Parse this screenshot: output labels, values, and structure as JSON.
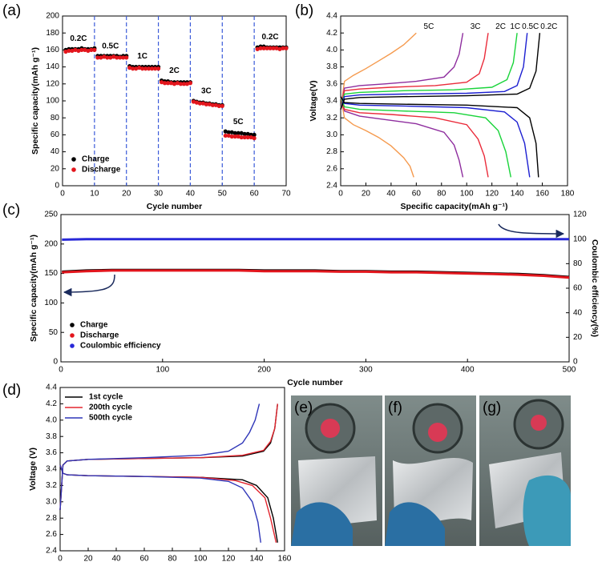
{
  "chart_data": [
    {
      "type": "scatter",
      "panel": "(a)",
      "xlabel": "Cycle number",
      "ylabel": "Specific capacity(mAh g⁻¹)",
      "xlim": [
        0,
        70
      ],
      "xticks": [
        0,
        10,
        20,
        30,
        40,
        50,
        60,
        70
      ],
      "ylim": [
        0,
        200
      ],
      "yticks": [
        0,
        20,
        40,
        60,
        80,
        100,
        120,
        140,
        160,
        180,
        200
      ],
      "legend": "lower left",
      "dividers": [
        10,
        20,
        30,
        40,
        50,
        60
      ],
      "divider_color": "#3b5bd9",
      "annotations": [
        "0.2C",
        "0.5C",
        "1C",
        "2C",
        "3C",
        "5C",
        "0.2C"
      ],
      "x": [
        1,
        2,
        3,
        4,
        5,
        6,
        7,
        8,
        9,
        10,
        11,
        12,
        13,
        14,
        15,
        16,
        17,
        18,
        19,
        20,
        21,
        22,
        23,
        24,
        25,
        26,
        27,
        28,
        29,
        30,
        31,
        32,
        33,
        34,
        35,
        36,
        37,
        38,
        39,
        40,
        41,
        42,
        43,
        44,
        45,
        46,
        47,
        48,
        49,
        50,
        51,
        52,
        53,
        54,
        55,
        56,
        57,
        58,
        59,
        60,
        61,
        62,
        63,
        64,
        65,
        66,
        67,
        68,
        69,
        70
      ],
      "series": [
        {
          "name": "Charge",
          "color": "#000000",
          "values": [
            160,
            161,
            161,
            161,
            161,
            162,
            161,
            161,
            161,
            162,
            153,
            153,
            153,
            153,
            153,
            153,
            153,
            152,
            153,
            153,
            141,
            140,
            140,
            140,
            140,
            140,
            140,
            140,
            140,
            140,
            124,
            123,
            123,
            122,
            122,
            122,
            122,
            122,
            122,
            122,
            100,
            99,
            98,
            98,
            97,
            97,
            96,
            96,
            95,
            95,
            64,
            63,
            63,
            62,
            62,
            62,
            61,
            61,
            60,
            60,
            163,
            164,
            164,
            163,
            163,
            163,
            163,
            163,
            163,
            163
          ]
        },
        {
          "name": "Discharge",
          "color": "#e3161d",
          "values": [
            158,
            159,
            159,
            160,
            159,
            160,
            160,
            159,
            160,
            160,
            151,
            151,
            152,
            151,
            151,
            152,
            151,
            151,
            151,
            151,
            139,
            138,
            138,
            139,
            138,
            138,
            138,
            138,
            138,
            138,
            122,
            121,
            121,
            121,
            120,
            121,
            120,
            120,
            120,
            121,
            99,
            98,
            97,
            97,
            96,
            96,
            95,
            95,
            94,
            94,
            59,
            59,
            58,
            58,
            58,
            57,
            57,
            57,
            57,
            56,
            161,
            162,
            162,
            162,
            162,
            162,
            162,
            161,
            162,
            162
          ]
        }
      ]
    },
    {
      "type": "line",
      "panel": "(b)",
      "xlabel": "Specific capacity(mAh g⁻¹)",
      "ylabel": "Voltage(V)",
      "xlim": [
        0,
        180
      ],
      "xticks": [
        0,
        20,
        40,
        60,
        80,
        100,
        120,
        140,
        160,
        180
      ],
      "ylim": [
        2.4,
        4.4
      ],
      "yticks": [
        2.4,
        2.6,
        2.8,
        {
          "value": 3,
          "label": "3.0"
        },
        3.2,
        3.4,
        3.6,
        3.8,
        {
          "value": 4,
          "label": "4.0"
        },
        4.2,
        4.4
      ],
      "curves": [
        {
          "name": "5C",
          "color": "#f59a4e",
          "charge": {
            "x": [
              0,
              3,
              10,
              20,
              30,
              40,
              50,
              55,
              60
            ],
            "y": [
              3.3,
              3.63,
              3.7,
              3.78,
              3.87,
              3.96,
              4.06,
              4.13,
              4.2
            ]
          },
          "discharge": {
            "x": [
              0,
              3,
              10,
              20,
              30,
              40,
              50,
              55,
              58
            ],
            "y": [
              3.45,
              3.2,
              3.12,
              3.05,
              2.97,
              2.87,
              2.73,
              2.63,
              2.5
            ]
          }
        },
        {
          "name": "3C",
          "color": "#8e2d9e",
          "charge": {
            "x": [
              0,
              3,
              15,
              35,
              60,
              82,
              90,
              94,
              97
            ],
            "y": [
              3.3,
              3.55,
              3.58,
              3.6,
              3.63,
              3.68,
              3.8,
              3.95,
              4.2
            ]
          },
          "discharge": {
            "x": [
              0,
              3,
              15,
              35,
              60,
              82,
              90,
              94,
              97
            ],
            "y": [
              3.45,
              3.28,
              3.22,
              3.18,
              3.13,
              3.03,
              2.88,
              2.7,
              2.5
            ]
          }
        },
        {
          "name": "2C",
          "color": "#ea2b3a",
          "charge": {
            "x": [
              0,
              3,
              15,
              40,
              75,
              100,
              110,
              114,
              117
            ],
            "y": [
              3.3,
              3.52,
              3.54,
              3.56,
              3.58,
              3.62,
              3.72,
              3.9,
              4.2
            ]
          },
          "discharge": {
            "x": [
              0,
              3,
              15,
              40,
              75,
              100,
              109,
              114,
              117
            ],
            "y": [
              3.45,
              3.3,
              3.26,
              3.24,
              3.2,
              3.12,
              2.95,
              2.75,
              2.5
            ]
          }
        },
        {
          "name": "1C",
          "color": "#19d43a",
          "charge": {
            "x": [
              0,
              3,
              15,
              50,
              90,
              120,
              132,
              137,
              140
            ],
            "y": [
              3.3,
              3.48,
              3.5,
              3.52,
              3.53,
              3.56,
              3.65,
              3.85,
              4.2
            ]
          },
          "discharge": {
            "x": [
              0,
              3,
              15,
              50,
              90,
              115,
              125,
              131,
              135
            ],
            "y": [
              3.45,
              3.33,
              3.3,
              3.28,
              3.26,
              3.2,
              3.05,
              2.8,
              2.5
            ]
          }
        },
        {
          "name": "0.5C",
          "color": "#1c1fd1",
          "charge": {
            "x": [
              0,
              3,
              15,
              50,
              100,
              130,
              140,
              145,
              148
            ],
            "y": [
              3.3,
              3.45,
              3.47,
              3.48,
              3.49,
              3.51,
              3.58,
              3.8,
              4.2
            ]
          },
          "discharge": {
            "x": [
              0,
              3,
              15,
              50,
              100,
              130,
              140,
              146,
              150
            ],
            "y": [
              3.45,
              3.37,
              3.35,
              3.34,
              3.32,
              3.27,
              3.15,
              2.9,
              2.5
            ]
          }
        },
        {
          "name": "0.2C",
          "color": "#000000",
          "charge": {
            "x": [
              0,
              3,
              15,
              50,
              100,
              140,
              150,
              155,
              158
            ],
            "y": [
              3.3,
              3.42,
              3.44,
              3.45,
              3.46,
              3.48,
              3.55,
              3.75,
              4.2
            ]
          },
          "discharge": {
            "x": [
              0,
              3,
              15,
              50,
              100,
              140,
              150,
              155,
              157
            ],
            "y": [
              3.45,
              3.38,
              3.37,
              3.36,
              3.35,
              3.32,
              3.2,
              2.9,
              2.5
            ]
          }
        }
      ]
    },
    {
      "type": "line",
      "panel": "(c)",
      "xlabel": "Cycle number",
      "ylabel": "Specific capacity(mAh g⁻¹)",
      "y2label": "Coulombic efficiency(%)",
      "xlim": [
        0,
        500
      ],
      "xticks": [
        0,
        100,
        200,
        300,
        400,
        500
      ],
      "ylim": [
        0,
        250
      ],
      "yticks": [
        0,
        50,
        100,
        150,
        200,
        250
      ],
      "y2lim": [
        0,
        120
      ],
      "y2ticks": [
        0,
        20,
        40,
        60,
        80,
        100,
        120
      ],
      "legend": "lower left",
      "x": [
        1,
        25,
        50,
        75,
        100,
        125,
        150,
        175,
        200,
        225,
        250,
        275,
        300,
        325,
        350,
        375,
        400,
        425,
        450,
        475,
        500
      ],
      "series": [
        {
          "name": "Charge",
          "color": "#000000",
          "values": [
            153,
            155,
            156,
            156,
            156,
            156,
            156,
            156,
            155,
            155,
            155,
            154,
            154,
            153,
            153,
            152,
            151,
            150,
            149,
            147,
            144
          ]
        },
        {
          "name": "Discharge",
          "color": "#e3161d",
          "values": [
            152,
            154,
            155,
            155,
            155,
            155,
            155,
            155,
            154,
            154,
            154,
            153,
            153,
            152,
            152,
            151,
            150,
            149,
            148,
            146,
            143
          ]
        },
        {
          "name": "Coulombic efficiency",
          "color": "#2828d8",
          "axis": "y2",
          "values": [
            99.5,
            100,
            100,
            100,
            100,
            100,
            100,
            100,
            100,
            100,
            100,
            100,
            100,
            100,
            100,
            100,
            100,
            100,
            100,
            100,
            100
          ]
        }
      ]
    },
    {
      "type": "line",
      "panel": "(d)",
      "ylabel": "Voltage (V)",
      "xlim": [
        0,
        160
      ],
      "xticks": [
        0,
        20,
        40,
        60,
        80,
        100,
        120,
        140,
        160
      ],
      "ylim": [
        2.4,
        4.4
      ],
      "yticks": [
        2.4,
        2.6,
        2.8,
        {
          "value": 3,
          "label": "3.0"
        },
        3.2,
        3.4,
        3.6,
        3.8,
        {
          "value": 4,
          "label": "4.0"
        },
        4.2,
        4.4
      ],
      "legend": "upper left",
      "curves": [
        {
          "name": "1st cycle",
          "color": "#000000",
          "charge": {
            "x": [
              0,
              2,
              5,
              20,
              60,
              100,
              130,
              145,
              150,
              153,
              155
            ],
            "y": [
              2.9,
              3.45,
              3.5,
              3.52,
              3.53,
              3.54,
              3.56,
              3.62,
              3.72,
              3.9,
              4.2
            ]
          },
          "discharge": {
            "x": [
              0,
              2,
              5,
              20,
              60,
              100,
              130,
              140,
              148,
              152,
              155
            ],
            "y": [
              3.45,
              3.35,
              3.33,
              3.32,
              3.31,
              3.3,
              3.27,
              3.2,
              3.05,
              2.8,
              2.5
            ]
          }
        },
        {
          "name": "200th cycle",
          "color": "#e3262f",
          "charge": {
            "x": [
              0,
              2,
              5,
              20,
              60,
              100,
              130,
              145,
              150,
              153,
              155
            ],
            "y": [
              2.9,
              3.45,
              3.5,
              3.52,
              3.53,
              3.54,
              3.57,
              3.63,
              3.74,
              3.9,
              4.2
            ]
          },
          "discharge": {
            "x": [
              0,
              2,
              5,
              20,
              60,
              100,
              125,
              137,
              146,
              150,
              154
            ],
            "y": [
              3.45,
              3.35,
              3.33,
              3.32,
              3.31,
              3.3,
              3.26,
              3.2,
              3.05,
              2.8,
              2.5
            ]
          }
        },
        {
          "name": "500th cycle",
          "color": "#2f36b8",
          "charge": {
            "x": [
              0,
              2,
              5,
              20,
              60,
              100,
              120,
              130,
              135,
              139,
              142
            ],
            "y": [
              2.9,
              3.45,
              3.5,
              3.52,
              3.54,
              3.57,
              3.62,
              3.72,
              3.85,
              4.0,
              4.2
            ]
          },
          "discharge": {
            "x": [
              0,
              2,
              5,
              20,
              60,
              100,
              120,
              130,
              137,
              141,
              143
            ],
            "y": [
              3.45,
              3.35,
              3.33,
              3.32,
              3.31,
              3.29,
              3.25,
              3.17,
              3.0,
              2.75,
              2.5
            ]
          }
        }
      ]
    }
  ],
  "photos": {
    "labels": [
      "(e)",
      "(f)",
      "(g)"
    ]
  }
}
